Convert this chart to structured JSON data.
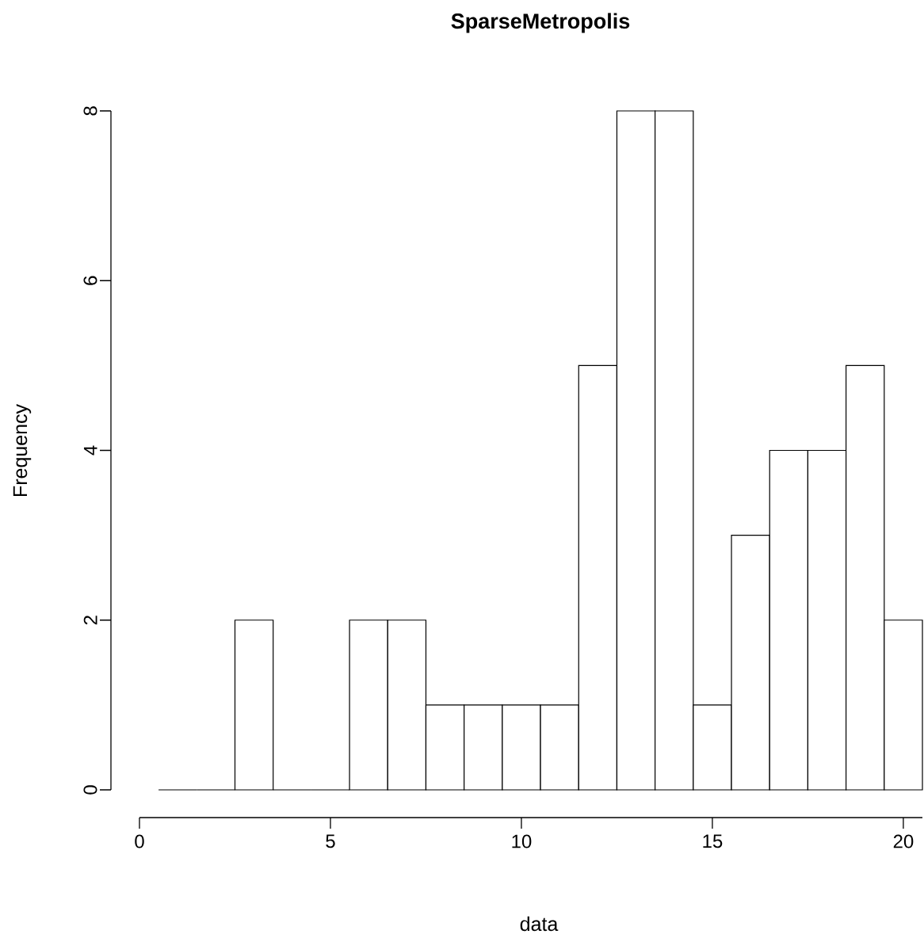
{
  "chart_data": {
    "type": "histogram",
    "title": "SparseMetropolis",
    "xlabel": "data",
    "ylabel": "Frequency",
    "bins": [
      0.5,
      1.5,
      2.5,
      3.5,
      4.5,
      5.5,
      6.5,
      7.5,
      8.5,
      9.5,
      10.5,
      11.5,
      12.5,
      13.5,
      14.5,
      15.5,
      16.5,
      17.5,
      18.5,
      19.5,
      20.5
    ],
    "values": [
      0,
      0,
      2,
      0,
      0,
      2,
      2,
      1,
      1,
      1,
      1,
      5,
      8,
      8,
      1,
      3,
      4,
      4,
      5,
      2
    ],
    "color": "#ffffff",
    "xlim": [
      0,
      20.5
    ],
    "ylim": [
      0,
      8
    ],
    "xticks": [
      0,
      5,
      10,
      15,
      20
    ],
    "yticks": [
      0,
      2,
      4,
      6,
      8
    ]
  }
}
